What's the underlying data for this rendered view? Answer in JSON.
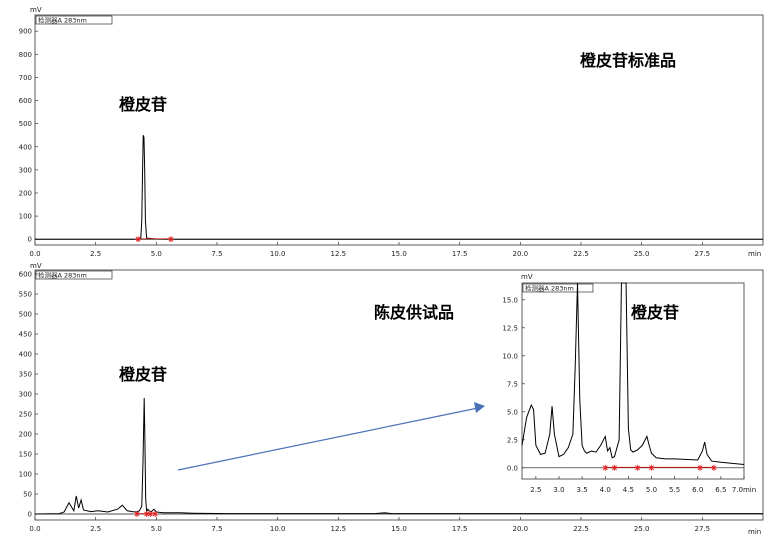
{
  "chart_data": [
    {
      "id": "standard",
      "type": "line",
      "ylabel": "mV",
      "xlabel": "min",
      "legend": "检测器A 283nm",
      "annotations": [
        "橙皮苷标准品",
        "橙皮苷"
      ],
      "xlim": [
        0,
        30
      ],
      "ylim": [
        -25,
        970
      ],
      "yticks": [
        0,
        100,
        200,
        300,
        400,
        500,
        600,
        700,
        800,
        900
      ],
      "xticks": [
        0.0,
        2.5,
        5.0,
        7.5,
        10.0,
        12.5,
        15.0,
        17.5,
        20.0,
        22.5,
        25.0,
        27.5
      ],
      "series": [
        {
          "x": [
            0,
            4.3,
            4.36,
            4.4,
            4.43,
            4.46,
            4.49,
            4.52,
            4.55,
            4.6,
            5.0,
            5.6,
            10,
            20,
            30
          ],
          "y": [
            0,
            0,
            5,
            80,
            280,
            450,
            440,
            300,
            80,
            5,
            1,
            0,
            0,
            0,
            0
          ]
        }
      ],
      "markers_x": [
        4.25,
        5.6
      ]
    },
    {
      "id": "sample",
      "type": "line",
      "ylabel": "mV",
      "xlabel": "min",
      "legend": "检测器A 283nm",
      "annotations": [
        "陈皮供试品",
        "橙皮苷"
      ],
      "xlim": [
        0,
        30
      ],
      "ylim": [
        -15,
        610
      ],
      "yticks": [
        0,
        50,
        100,
        150,
        200,
        250,
        300,
        350,
        400,
        450,
        500,
        550,
        600
      ],
      "xticks": [
        0.0,
        2.5,
        5.0,
        7.5,
        10.0,
        12.5,
        15.0,
        17.5,
        20.0,
        22.5,
        25.0,
        27.5
      ],
      "series": [
        {
          "x": [
            0,
            1.0,
            1.2,
            1.4,
            1.6,
            1.7,
            1.8,
            1.9,
            2.0,
            2.3,
            2.6,
            3.0,
            3.4,
            3.6,
            3.8,
            4.0,
            4.2,
            4.3,
            4.4,
            4.45,
            4.5,
            4.53,
            4.56,
            4.6,
            4.65,
            4.7,
            4.8,
            4.9,
            5.0,
            5.3,
            6.0,
            6.5,
            8,
            10,
            14,
            14.4,
            14.7,
            17,
            20,
            25,
            30
          ],
          "y": [
            0,
            1,
            5,
            28,
            8,
            45,
            15,
            35,
            10,
            6,
            8,
            5,
            12,
            22,
            8,
            6,
            5,
            8,
            20,
            130,
            290,
            180,
            40,
            6,
            12,
            8,
            6,
            12,
            5,
            3,
            3,
            2,
            1,
            1,
            1,
            3,
            1,
            1,
            1,
            1,
            1
          ]
        }
      ],
      "markers_x": [
        4.2,
        4.6,
        4.75,
        4.95
      ]
    },
    {
      "id": "inset",
      "type": "line",
      "ylabel": "mV",
      "xlabel": "min",
      "legend": "检测器A 283nm",
      "annotations": [
        "橙皮苷"
      ],
      "xlim": [
        2.2,
        7.0
      ],
      "ylim": [
        -1.0,
        16.5
      ],
      "yticks": [
        0.0,
        2.5,
        5.0,
        7.5,
        10.0,
        12.5,
        15.0
      ],
      "xticks": [
        2.5,
        3.0,
        3.5,
        4.0,
        4.5,
        5.0,
        5.5,
        6.0,
        6.5,
        7.0
      ],
      "xticklabels": [
        "2.5",
        "3.0",
        "3.5",
        "4.0",
        "4.5",
        "5.0",
        "5.5",
        "6.0",
        "6.5",
        "7.0min"
      ],
      "series": [
        {
          "x": [
            2.2,
            2.3,
            2.4,
            2.45,
            2.5,
            2.6,
            2.7,
            2.8,
            2.85,
            2.9,
            3.0,
            3.1,
            3.2,
            3.3,
            3.35,
            3.4,
            3.45,
            3.5,
            3.55,
            3.6,
            3.7,
            3.8,
            3.9,
            4.0,
            4.05,
            4.1,
            4.15,
            4.2,
            4.3,
            4.35,
            4.4,
            4.45,
            4.5,
            4.55,
            4.6,
            4.65,
            4.7,
            4.8,
            4.9,
            4.95,
            5.0,
            5.1,
            5.3,
            5.5,
            6.0,
            6.1,
            6.15,
            6.2,
            6.3,
            6.5,
            7.0
          ],
          "y": [
            2.0,
            4.5,
            5.6,
            5.2,
            2.0,
            1.2,
            1.3,
            3.0,
            5.5,
            3.0,
            1.0,
            1.2,
            1.8,
            3.0,
            9.0,
            16.5,
            6.0,
            2.0,
            1.5,
            1.3,
            1.5,
            1.4,
            2.0,
            2.8,
            1.5,
            1.8,
            0.9,
            1.0,
            2.5,
            16.5,
            16.5,
            16.5,
            3.5,
            1.6,
            1.4,
            1.5,
            1.6,
            2.0,
            2.8,
            2.0,
            1.3,
            0.9,
            0.8,
            0.8,
            0.7,
            1.5,
            2.3,
            1.2,
            0.6,
            0.5,
            0.3
          ]
        }
      ],
      "markers_x": [
        4.0,
        4.2,
        4.7,
        5.0,
        6.05,
        6.35
      ]
    }
  ]
}
